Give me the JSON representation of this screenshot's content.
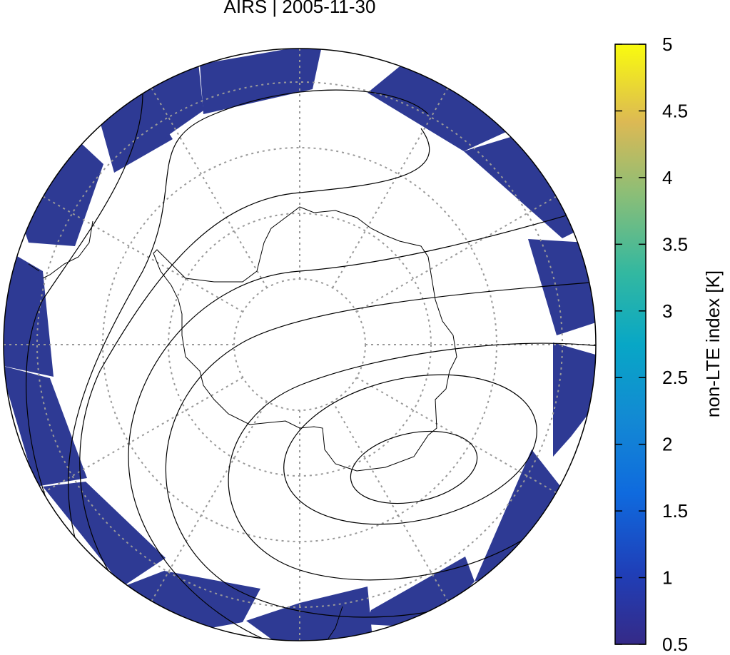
{
  "title": "AIRS | 2005-11-30",
  "colorbar": {
    "label": "non-LTE index [K]",
    "lim": [
      0.5,
      5
    ],
    "ticks": [
      0.5,
      1,
      1.5,
      2,
      2.5,
      3,
      3.5,
      4,
      4.5,
      5
    ]
  }
}
